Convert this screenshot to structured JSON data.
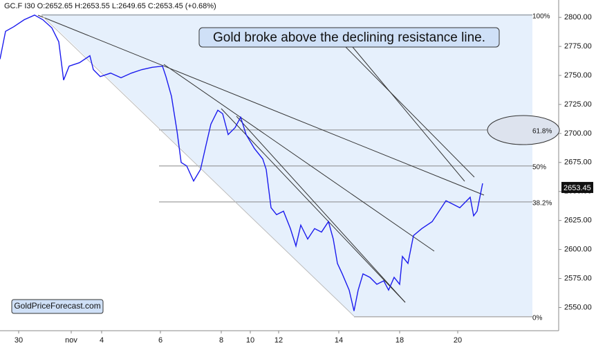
{
  "chart_data": {
    "type": "line",
    "header": "GC.F  I30  O:2652.65  H:2653.55  L:2649.65  C:2653.45  (+0.68%)",
    "annotation": "Gold broke above the declining resistance line.",
    "watermark": "GoldPriceForecast.com",
    "last_price": 2653.45,
    "xlim": [
      0,
      808
    ],
    "ylim": [
      2530,
      2815
    ],
    "xticks": [
      {
        "value": 27,
        "label": "30"
      },
      {
        "value": 103,
        "label": "nov"
      },
      {
        "value": 147,
        "label": "4"
      },
      {
        "value": 232,
        "label": "6"
      },
      {
        "value": 320,
        "label": "8"
      },
      {
        "value": 362,
        "label": "10"
      },
      {
        "value": 403,
        "label": "12"
      },
      {
        "value": 490,
        "label": "14"
      },
      {
        "value": 578,
        "label": "18"
      },
      {
        "value": 662,
        "label": "20"
      }
    ],
    "yticks": [
      {
        "value": 2550,
        "label": "2550.00"
      },
      {
        "value": 2575,
        "label": "2575.00"
      },
      {
        "value": 2600,
        "label": "2600.00"
      },
      {
        "value": 2625,
        "label": "2625.00"
      },
      {
        "value": 2650,
        "label": "2650.00"
      },
      {
        "value": 2675,
        "label": "2675.00"
      },
      {
        "value": 2700,
        "label": "2700.00"
      },
      {
        "value": 2725,
        "label": "2725.00"
      },
      {
        "value": 2750,
        "label": "2750.00"
      },
      {
        "value": 2775,
        "label": "2775.00"
      },
      {
        "value": 2800,
        "label": "2800.00"
      }
    ],
    "fib_levels": [
      {
        "value": 2802,
        "label": "100%"
      },
      {
        "value": 2703,
        "label": "61.8%"
      },
      {
        "value": 2672,
        "label": "50%"
      },
      {
        "value": 2641,
        "label": "38.2%"
      },
      {
        "value": 2542,
        "label": "0%"
      }
    ],
    "x": [
      0,
      8,
      20,
      35,
      50,
      62,
      75,
      85,
      92,
      100,
      115,
      130,
      135,
      145,
      160,
      175,
      190,
      205,
      220,
      235,
      240,
      248,
      256,
      262,
      270,
      280,
      290,
      298,
      305,
      315,
      322,
      330,
      340,
      348,
      356,
      368,
      380,
      385,
      392,
      400,
      410,
      420,
      428,
      435,
      445,
      455,
      465,
      475,
      482,
      488,
      495,
      505,
      512,
      518,
      525,
      535,
      545,
      555,
      562,
      570,
      578,
      582,
      590,
      598,
      610,
      625,
      635,
      645,
      655,
      665,
      675,
      680,
      685,
      690,
      695,
      698
    ],
    "series": [
      {
        "name": "GC.F",
        "color": "#1a1aee",
        "values": [
          2764,
          2788,
          2792,
          2798,
          2802,
          2798,
          2791,
          2779,
          2746,
          2758,
          2761,
          2767,
          2755,
          2749,
          2752,
          2748,
          2752,
          2755,
          2757,
          2758,
          2749,
          2732,
          2702,
          2675,
          2672,
          2659,
          2669,
          2690,
          2708,
          2720,
          2717,
          2699,
          2705,
          2714,
          2699,
          2687,
          2678,
          2669,
          2636,
          2630,
          2633,
          2618,
          2603,
          2621,
          2609,
          2618,
          2615,
          2624,
          2609,
          2588,
          2579,
          2565,
          2547,
          2565,
          2579,
          2576,
          2570,
          2573,
          2565,
          2576,
          2570,
          2594,
          2588,
          2612,
          2618,
          2624,
          2633,
          2642,
          2639,
          2636,
          2642,
          2645,
          2629,
          2633,
          2648,
          2657
        ]
      }
    ]
  }
}
